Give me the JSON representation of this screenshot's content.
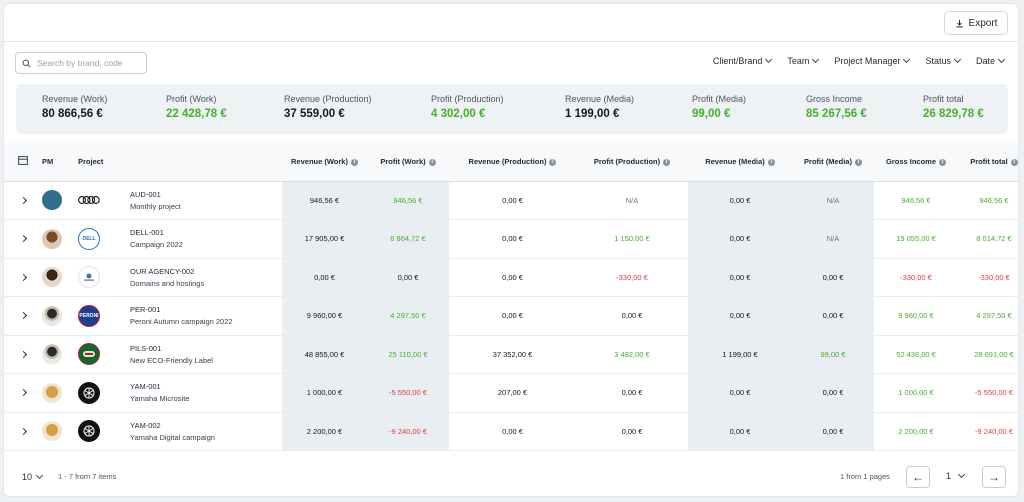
{
  "toolbar": {
    "export_label": "Export"
  },
  "search": {
    "placeholder": "Search by brand, code"
  },
  "filters": [
    "Client/Brand",
    "Team",
    "Project Manager",
    "Status",
    "Date"
  ],
  "summary": [
    {
      "label": "Revenue (Work)",
      "value": "80 866,56 €",
      "tone": "dark"
    },
    {
      "label": "Profit (Work)",
      "value": "22 428,78 €",
      "tone": "green"
    },
    {
      "label": "Revenue (Production)",
      "value": "37 559,00 €",
      "tone": "dark"
    },
    {
      "label": "Profit (Production)",
      "value": "4 302,00 €",
      "tone": "green"
    },
    {
      "label": "Revenue (Media)",
      "value": "1 199,00 €",
      "tone": "dark"
    },
    {
      "label": "Profit (Media)",
      "value": "99,00 €",
      "tone": "green"
    },
    {
      "label": "Gross Income",
      "value": "85 267,56 €",
      "tone": "green"
    },
    {
      "label": "Profit total",
      "value": "26 829,78 €",
      "tone": "green"
    }
  ],
  "table": {
    "headers": [
      "PM",
      "Project",
      "Revenue (Work)",
      "Profit (Work)",
      "Revenue (Production)",
      "Profit (Production)",
      "Revenue (Media)",
      "Profit (Media)",
      "Gross Income",
      "Profit total"
    ],
    "rows": [
      {
        "code": "AUD-001",
        "name": "Monthly project",
        "logo_text": "",
        "values": [
          "946,56 €",
          "946,56 €",
          "0,00 €",
          "N/A",
          "0,00 €",
          "N/A",
          "946,56 €",
          "946,56 €"
        ],
        "tones": [
          "dark",
          "green",
          "dark",
          "muted",
          "dark",
          "muted",
          "green",
          "green"
        ]
      },
      {
        "code": "DELL-001",
        "name": "Campaign 2022",
        "logo_text": "DELL",
        "values": [
          "17 905,00 €",
          "6 864,72 €",
          "0,00 €",
          "1 150,00 €",
          "0,00 €",
          "N/A",
          "19 055,00 €",
          "8 014,72 €"
        ],
        "tones": [
          "dark",
          "green",
          "dark",
          "green",
          "dark",
          "muted",
          "green",
          "green"
        ]
      },
      {
        "code": "OUR AGENCY-002",
        "name": "Domains and hostings",
        "logo_text": "",
        "values": [
          "0,00 €",
          "0,00 €",
          "0,00 €",
          "-330,00 €",
          "0,00 €",
          "0,00 €",
          "-330,00 €",
          "-330,00 €"
        ],
        "tones": [
          "dark",
          "dark",
          "dark",
          "red",
          "dark",
          "dark",
          "red",
          "red"
        ]
      },
      {
        "code": "PER-001",
        "name": "Peroni Autumn campaign 2022",
        "logo_text": "PERONI",
        "values": [
          "9 960,00 €",
          "4 297,50 €",
          "0,00 €",
          "0,00 €",
          "0,00 €",
          "0,00 €",
          "9 960,00 €",
          "4 297,50 €"
        ],
        "tones": [
          "dark",
          "green",
          "dark",
          "dark",
          "dark",
          "dark",
          "green",
          "green"
        ]
      },
      {
        "code": "PILS-001",
        "name": "New ECO-Friendly Label",
        "logo_text": "",
        "values": [
          "48 855,00 €",
          "25 110,00 €",
          "37 352,00 €",
          "3 482,00 €",
          "1 199,00 €",
          "99,00 €",
          "52 436,00 €",
          "28 691,00 €"
        ],
        "tones": [
          "dark",
          "green",
          "dark",
          "green",
          "dark",
          "green",
          "green",
          "green"
        ]
      },
      {
        "code": "YAM-001",
        "name": "Yamaha Microsite",
        "logo_text": "",
        "values": [
          "1 000,00 €",
          "-5 550,00 €",
          "207,00 €",
          "0,00 €",
          "0,00 €",
          "0,00 €",
          "1 000,00 €",
          "-5 550,00 €"
        ],
        "tones": [
          "dark",
          "red",
          "dark",
          "dark",
          "dark",
          "dark",
          "green",
          "red"
        ]
      },
      {
        "code": "YAM-002",
        "name": "Yamaha Digital campaign",
        "logo_text": "",
        "values": [
          "2 200,00 €",
          "-9 240,00 €",
          "0,00 €",
          "0,00 €",
          "0,00 €",
          "0,00 €",
          "2 200,00 €",
          "-9 240,00 €"
        ],
        "tones": [
          "dark",
          "red",
          "dark",
          "dark",
          "dark",
          "dark",
          "green",
          "red"
        ]
      }
    ]
  },
  "footer": {
    "page_size": "10",
    "items_info": "1 - 7 from 7 items",
    "pages_info": "1 from 1 pages",
    "current_page": "1"
  },
  "colors": {
    "green": "#43b02a",
    "red": "#e23b3b",
    "shade": "#e9eef3"
  }
}
